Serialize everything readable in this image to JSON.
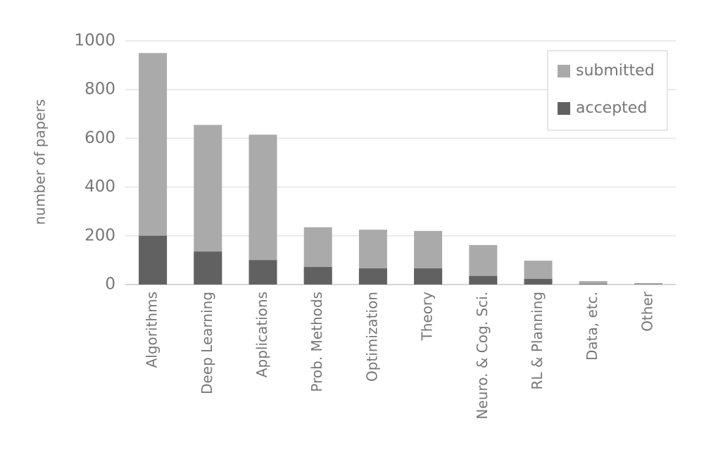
{
  "chart_data": {
    "type": "bar",
    "mode": "overlay",
    "y_label": "number of papers",
    "categories": [
      "Algorithms",
      "Deep Learning",
      "Applications",
      "Prob. Methods",
      "Optimization",
      "Theory",
      "Neuro. & Cog. Sci.",
      "RL & Planning",
      "Data, etc.",
      "Other"
    ],
    "series": [
      {
        "name": "submitted",
        "color": "#aaaaaa",
        "values": [
          950,
          655,
          615,
          235,
          225,
          220,
          162,
          98,
          14,
          6
        ]
      },
      {
        "name": "accepted",
        "color": "#616161",
        "values": [
          200,
          135,
          100,
          72,
          66,
          66,
          35,
          23,
          2,
          1
        ]
      }
    ],
    "ylim": [
      0,
      1000
    ],
    "yticks": [
      0,
      200,
      400,
      600,
      800,
      1000
    ],
    "grid": true,
    "legend": "top-right"
  }
}
